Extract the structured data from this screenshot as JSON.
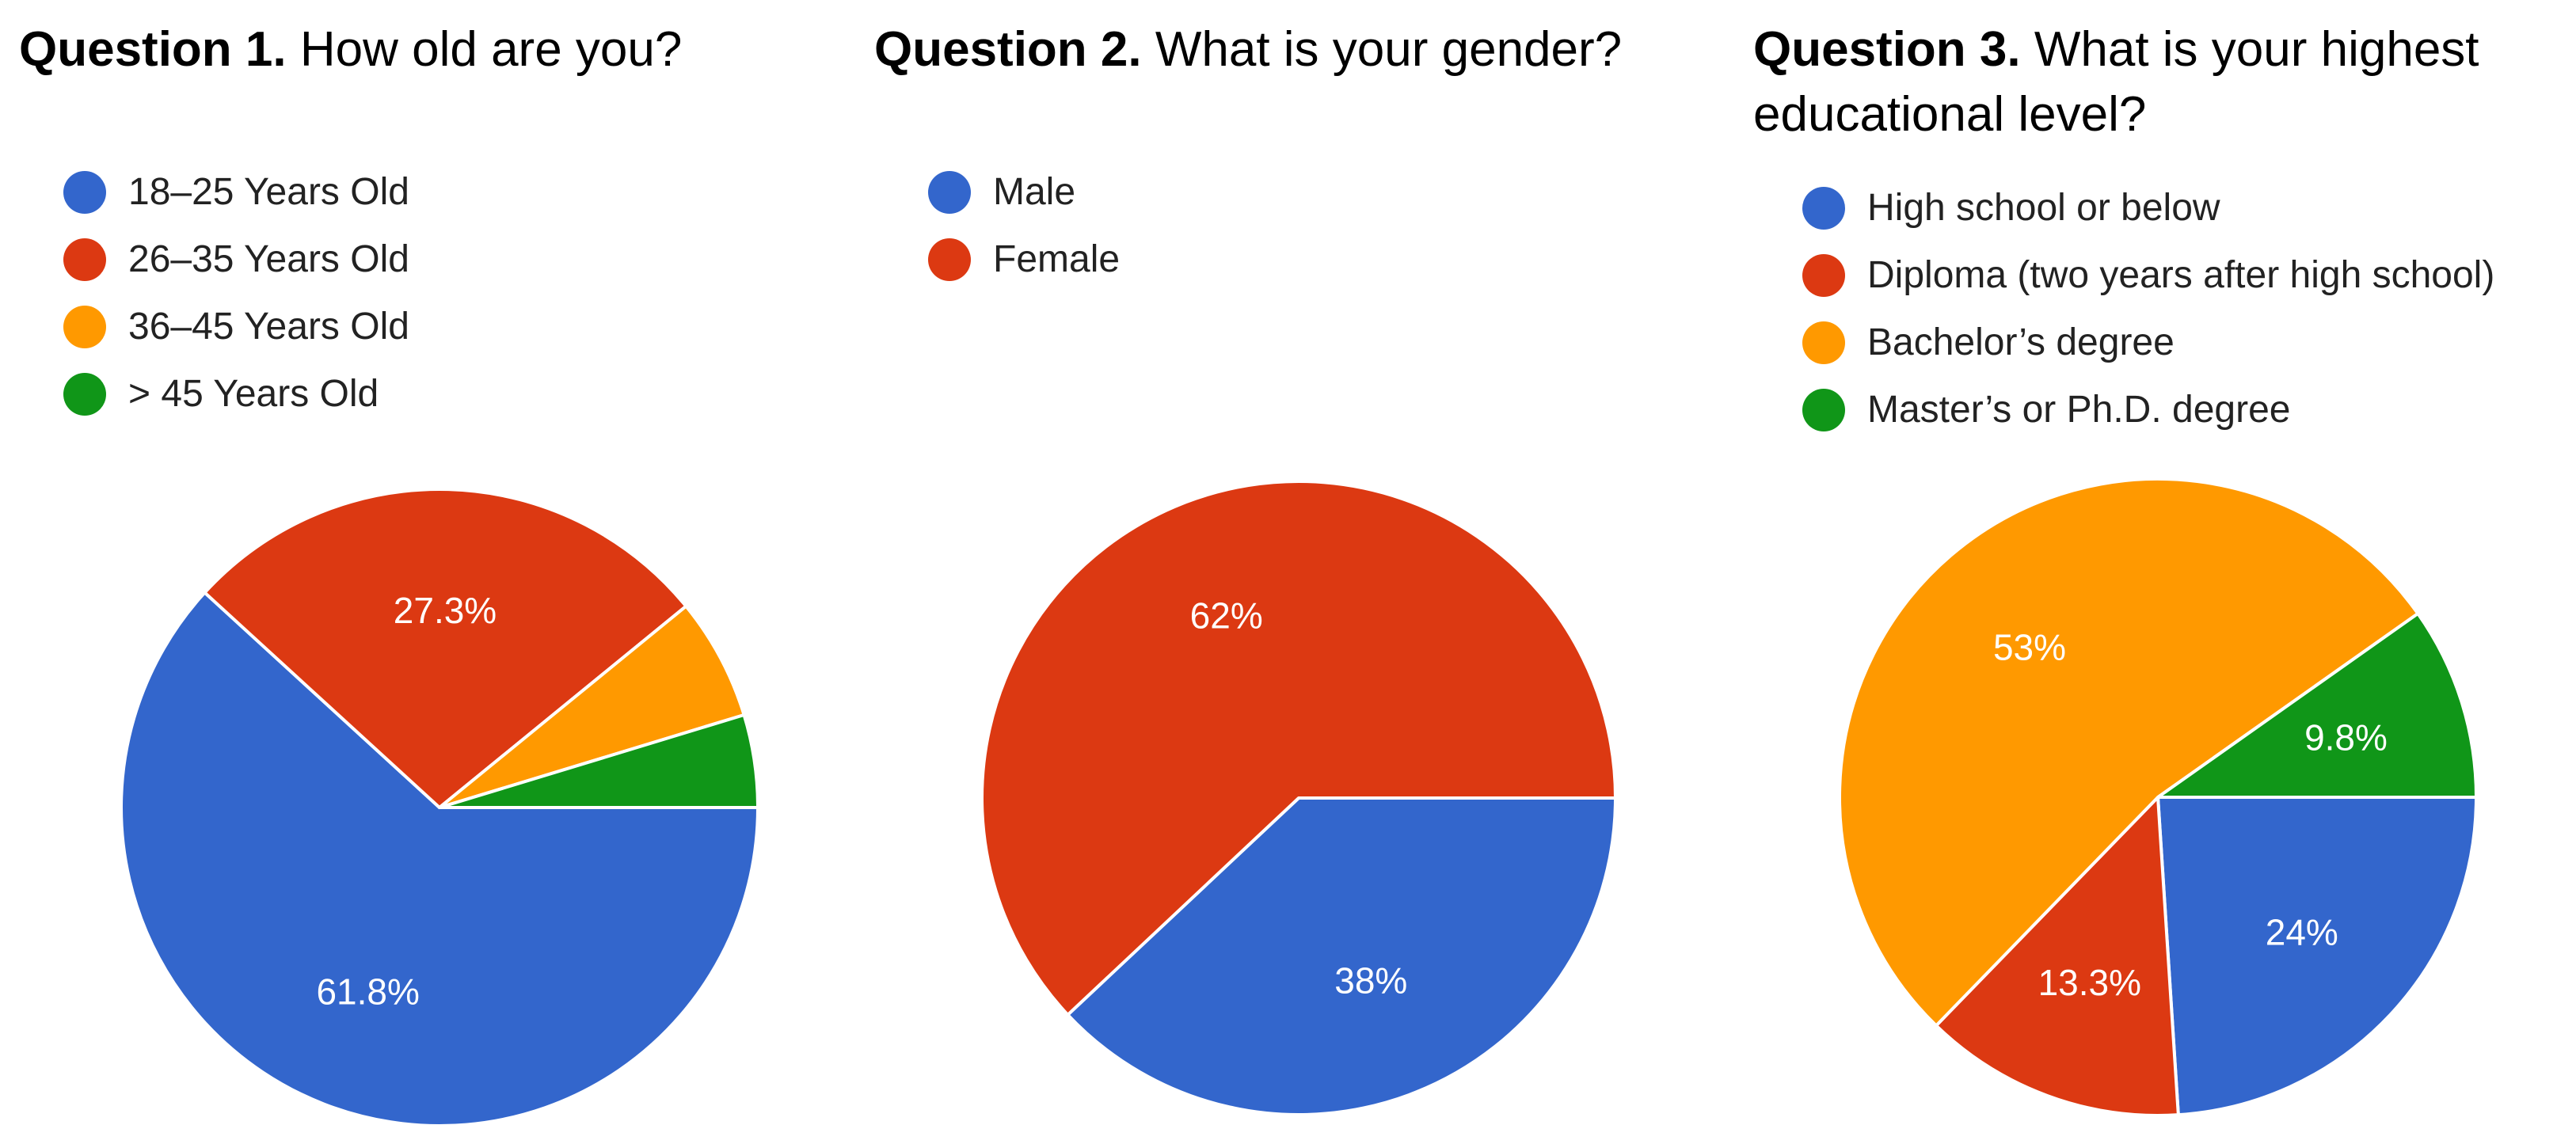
{
  "chart_data": [
    {
      "type": "pie",
      "title_prefix": "Question 1.",
      "title": "How old are you?",
      "legend_position": "top-left",
      "labels": [
        "18–25 Years Old",
        "26–35 Years Old",
        "36–45 Years Old",
        "> 45 Years Old"
      ],
      "values": [
        61.8,
        27.3,
        6.2,
        4.7
      ],
      "value_labels": [
        "61.8%",
        "27.3%",
        "",
        ""
      ],
      "colors": [
        "#3366cc",
        "#dc3912",
        "#ff9900",
        "#109618"
      ]
    },
    {
      "type": "pie",
      "title_prefix": "Question 2.",
      "title": "What is your gender?",
      "legend_position": "top-left",
      "labels": [
        "Male",
        "Female"
      ],
      "values": [
        38,
        62
      ],
      "value_labels": [
        "38%",
        "62%"
      ],
      "colors": [
        "#3366cc",
        "#dc3912"
      ]
    },
    {
      "type": "pie",
      "title_prefix": "Question 3.",
      "title": "What is your highest educational level?",
      "legend_position": "top-left",
      "labels": [
        "High school or below",
        "Diploma (two years after high school)",
        "Bachelor’s degree",
        "Master’s or Ph.D. degree"
      ],
      "values": [
        24,
        13.3,
        53,
        9.8
      ],
      "value_labels": [
        "24%",
        "13.3%",
        "53%",
        "9.8%"
      ],
      "colors": [
        "#3366cc",
        "#dc3912",
        "#ff9900",
        "#109618"
      ]
    }
  ]
}
